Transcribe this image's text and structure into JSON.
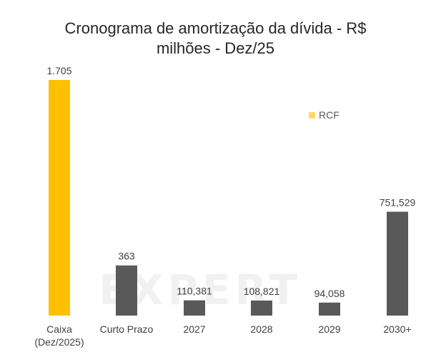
{
  "chart_data": {
    "type": "bar",
    "title": "Cronograma de amortização da dívida - R$ milhões - Dez/25",
    "title_lines": [
      "Cronograma de amortização da dívida - R$",
      "milhões - Dez/25"
    ],
    "categories": [
      "Caixa (Dez/2025)",
      "Curto Prazo",
      "2027",
      "2028",
      "2029",
      "2030+"
    ],
    "category_lines": [
      [
        "Caixa",
        "(Dez/2025)"
      ],
      [
        "Curto Prazo"
      ],
      [
        "2027"
      ],
      [
        "2028"
      ],
      [
        "2029"
      ],
      [
        "2030+"
      ]
    ],
    "values": [
      1705,
      363,
      110.381,
      108.821,
      94.058,
      751.529
    ],
    "data_labels": [
      "1.705",
      "363",
      "110,381",
      "108,821",
      "94,058",
      "751,529"
    ],
    "bar_colors": [
      "#FFC000",
      "#595959",
      "#595959",
      "#595959",
      "#595959",
      "#595959"
    ],
    "ylim": [
      0,
      1705
    ],
    "grid": false,
    "xlabel": "",
    "ylabel": "",
    "legend": {
      "placement": "top-right",
      "entries": [
        {
          "label": "RCF",
          "color": "#FFD966"
        }
      ]
    }
  },
  "watermark": "EXPERT",
  "colors": {
    "cash": "#FFC000",
    "debt": "#595959",
    "legend_rcf": "#FFD966"
  }
}
